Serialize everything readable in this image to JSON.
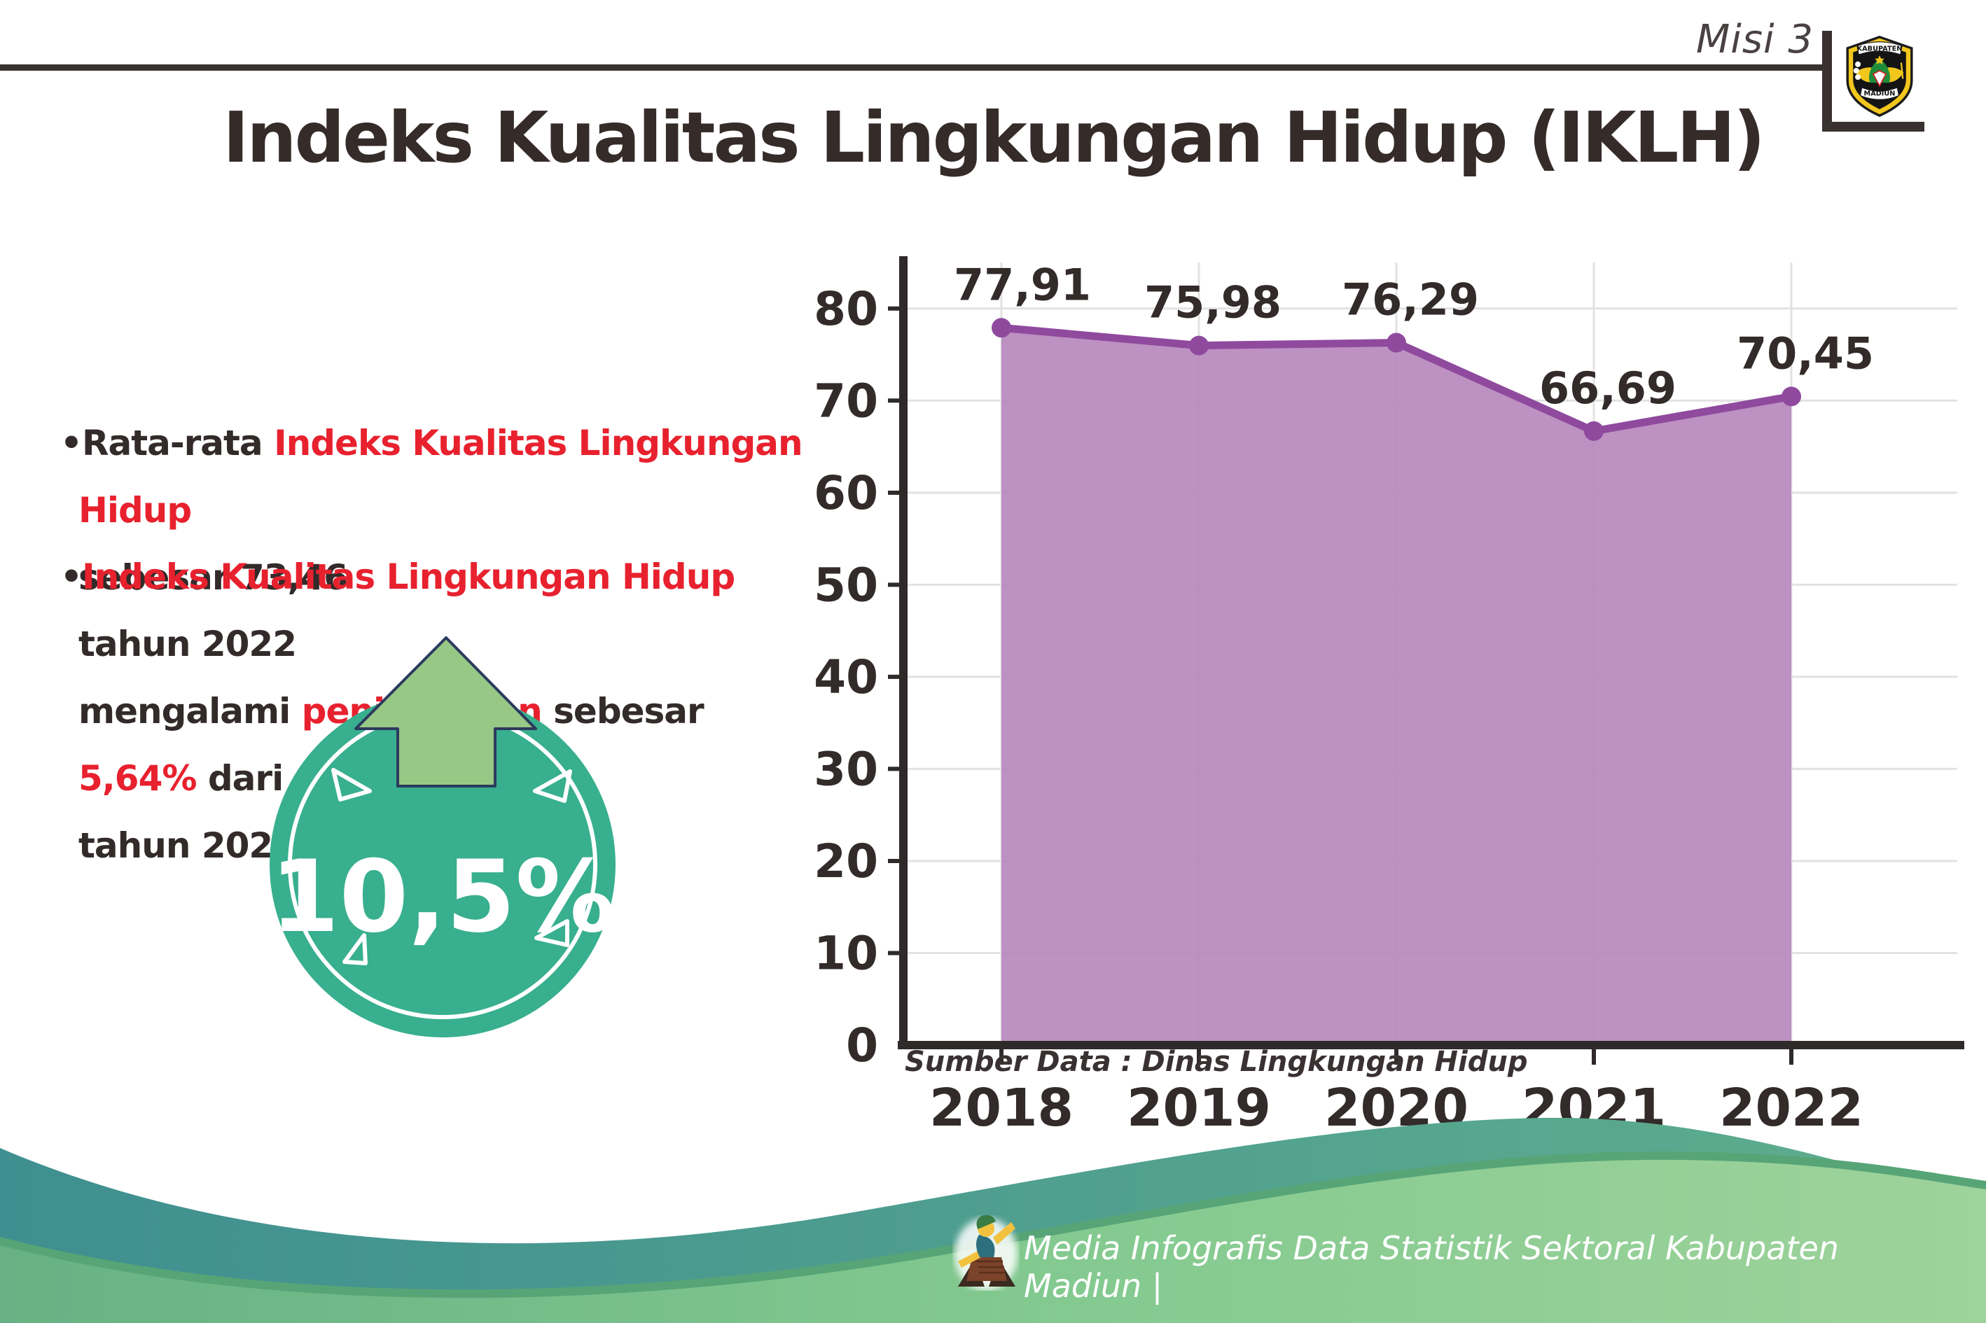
{
  "page": {
    "misi": "Misi 3",
    "title": "Indeks Kualitas Lingkungan Hidup (IKLH)"
  },
  "logo": {
    "top": "KABUPATEN",
    "bottom": "MADIUN"
  },
  "bullets": [
    {
      "segments": [
        {
          "text": "•",
          "color": "dark"
        },
        {
          "text": "Rata-rata ",
          "color": "dark"
        },
        {
          "text": "Indeks Kualitas Lingkungan Hidup",
          "color": "red"
        },
        {
          "text": "\nsebesar 73,46",
          "color": "dark"
        }
      ]
    },
    {
      "segments": [
        {
          "text": "•",
          "color": "dark"
        },
        {
          "text": "Indeks Kualitas Lingkungan Hidup",
          "color": "red"
        },
        {
          "text": " tahun 2022\nmengalami ",
          "color": "dark"
        },
        {
          "text": "peningkatan",
          "color": "red"
        },
        {
          "text": " sebesar ",
          "color": "dark"
        },
        {
          "text": "5,64%",
          "color": "red"
        },
        {
          "text": " dari\ntahun 2021",
          "color": "dark"
        }
      ]
    }
  ],
  "badge": {
    "value": "10,5%"
  },
  "chart_data": {
    "type": "area",
    "categories": [
      "2018",
      "2019",
      "2020",
      "2021",
      "2022"
    ],
    "values": [
      77.91,
      75.98,
      76.29,
      66.69,
      70.45
    ],
    "point_labels": [
      "77,91",
      "75,98",
      "76,29",
      "66,69",
      "70,45"
    ],
    "ylim": [
      0,
      85
    ],
    "yticks": [
      0,
      10,
      20,
      30,
      40,
      50,
      60,
      70,
      80
    ],
    "grid": true,
    "legend": "none",
    "area_color": "#b788bc",
    "line_color": "#8f4a9e"
  },
  "source_note": "Sumber Data : Dinas Lingkungan Hidup",
  "footer": {
    "text": "Media Infografis Data Statistik Sektoral Kabupaten Madiun |"
  },
  "colors": {
    "dark_text": "#332a2a",
    "red_text": "#e8212e",
    "badge_teal": "#38af8e",
    "arrow_green": "#97c885",
    "arrow_outline": "#2c3a5e",
    "teal_wave": "#3f8f90",
    "green_wave": "#77c38f",
    "axis": "#2f2a2a",
    "grid": "#e2e2e2"
  }
}
